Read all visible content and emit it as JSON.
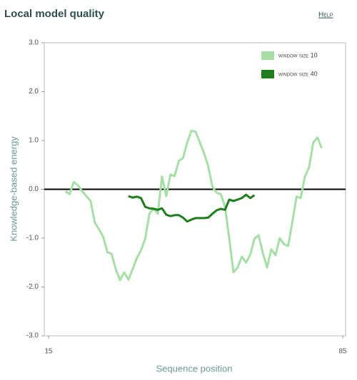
{
  "chart_data": {
    "type": "line",
    "title": "Local model quality",
    "help": "Help",
    "x_label": "Sequence position",
    "y_label": "Knowledge-based energy",
    "xlim": [
      15,
      85
    ],
    "xticks": [
      15,
      85
    ],
    "ylim": [
      -3,
      3
    ],
    "yticks": [
      {
        "value": -3,
        "label": "-3.0"
      },
      {
        "value": -2,
        "label": "-2.0"
      },
      {
        "value": -1,
        "label": "-1.0"
      },
      {
        "value": 0,
        "label": "0.0"
      },
      {
        "value": 1,
        "label": "1.0"
      },
      {
        "value": 2,
        "label": "2.0"
      },
      {
        "value": 3,
        "label": "3.0"
      }
    ],
    "legend": "top-right",
    "series": [
      {
        "name": "window size 10",
        "color": "#a6dea6",
        "x": [
          19,
          20,
          21,
          22,
          23,
          24,
          25,
          26,
          27,
          28,
          29,
          30,
          31,
          32,
          33,
          34,
          35,
          36,
          37,
          38,
          39,
          40,
          41,
          42,
          43,
          44,
          45,
          46,
          47,
          48,
          49,
          50,
          51,
          52,
          53,
          54,
          55,
          56,
          57,
          58,
          59,
          60,
          61,
          62,
          63,
          64,
          65,
          66,
          67,
          68,
          69,
          70,
          71,
          72,
          73,
          74,
          75,
          76,
          77,
          78,
          79,
          80
        ],
        "values": [
          -0.04,
          -0.1,
          0.15,
          0.08,
          -0.04,
          -0.14,
          -0.24,
          -0.68,
          -0.82,
          -0.97,
          -1.29,
          -1.32,
          -1.64,
          -1.86,
          -1.7,
          -1.85,
          -1.64,
          -1.41,
          -1.25,
          -1.01,
          -0.5,
          -0.39,
          -0.5,
          0.26,
          -0.14,
          0.3,
          0.27,
          0.58,
          0.64,
          0.96,
          1.2,
          1.18,
          0.96,
          0.74,
          0.47,
          0.05,
          -0.07,
          -0.1,
          -0.36,
          -1.01,
          -1.7,
          -1.6,
          -1.38,
          -1.5,
          -1.34,
          -1.01,
          -0.94,
          -1.31,
          -1.6,
          -1.23,
          -1.35,
          -1.0,
          -1.12,
          -1.16,
          -0.68,
          -0.15,
          -0.18,
          0.26,
          0.45,
          0.96,
          1.06,
          0.84
        ]
      },
      {
        "name": "window size 40",
        "color": "#1e7e1e",
        "x": [
          34,
          35,
          36,
          37,
          38,
          39,
          40,
          41,
          42,
          43,
          44,
          45,
          46,
          47,
          48,
          49,
          50,
          51,
          52,
          53,
          54,
          55,
          56,
          57,
          58,
          59,
          60,
          61,
          62,
          63,
          64
        ],
        "values": [
          -0.14,
          -0.17,
          -0.15,
          -0.18,
          -0.36,
          -0.39,
          -0.4,
          -0.42,
          -0.39,
          -0.52,
          -0.55,
          -0.53,
          -0.53,
          -0.58,
          -0.66,
          -0.62,
          -0.59,
          -0.59,
          -0.59,
          -0.58,
          -0.5,
          -0.43,
          -0.4,
          -0.42,
          -0.21,
          -0.24,
          -0.21,
          -0.18,
          -0.11,
          -0.18,
          -0.12
        ]
      }
    ]
  }
}
